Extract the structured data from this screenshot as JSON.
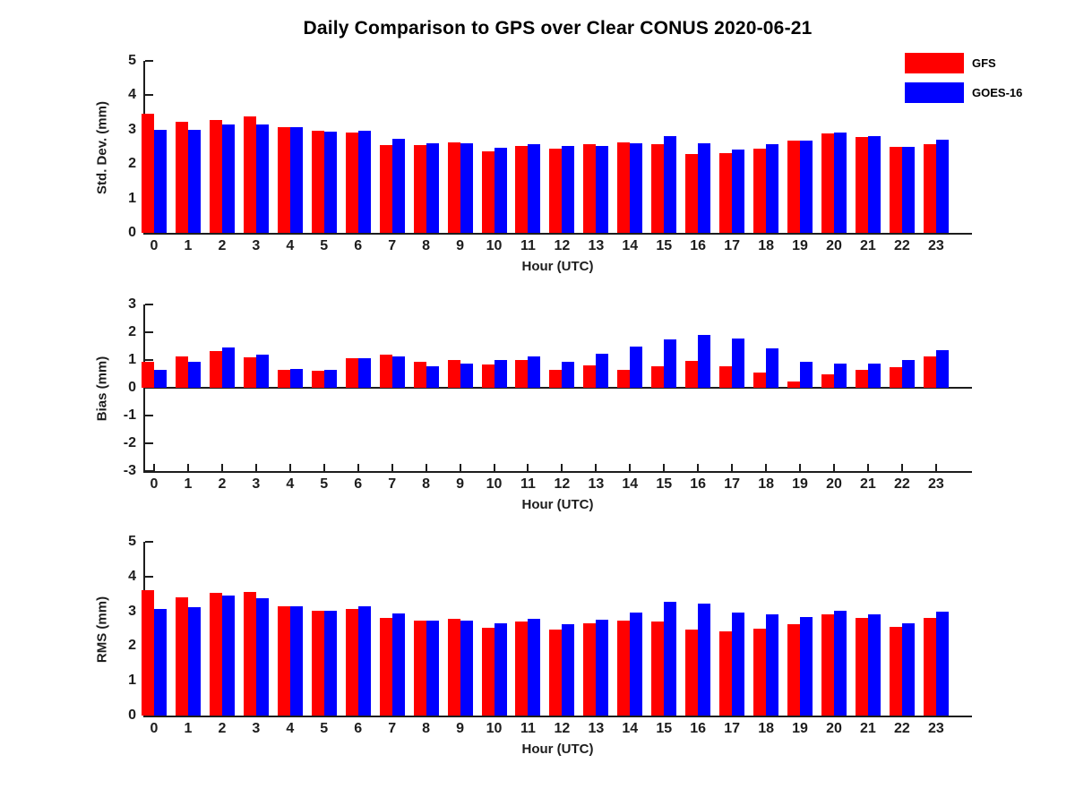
{
  "title": "Daily Comparison to GPS over Clear CONUS 2020-06-21",
  "colors": {
    "gfs_red": "#ff0000",
    "goes_blue": "#0000ff",
    "axis": "#1d1d1d"
  },
  "legend": {
    "position": "top-right",
    "items": [
      {
        "label": "GFS",
        "color": "#ff0000"
      },
      {
        "label": "GOES-16",
        "color": "#0000ff"
      }
    ]
  },
  "chart_data": [
    {
      "type": "bar",
      "name": "std-dev-panel",
      "ylabel": "Std. Dev. (mm)",
      "xlabel": "Hour (UTC)",
      "ylim": [
        0,
        5
      ],
      "yticks": [
        0,
        1,
        2,
        3,
        4,
        5
      ],
      "xticks_visible": false,
      "grid": false,
      "categories": [
        "0",
        "1",
        "2",
        "3",
        "4",
        "5",
        "6",
        "7",
        "8",
        "9",
        "10",
        "11",
        "12",
        "13",
        "14",
        "15",
        "16",
        "17",
        "18",
        "19",
        "20",
        "21",
        "22",
        "23"
      ],
      "series": [
        {
          "name": "GFS",
          "color": "#ff0000",
          "values": [
            3.47,
            3.23,
            3.27,
            3.38,
            3.08,
            2.96,
            2.91,
            2.56,
            2.56,
            2.63,
            2.36,
            2.52,
            2.44,
            2.57,
            2.64,
            2.58,
            2.3,
            2.33,
            2.46,
            2.67,
            2.88,
            2.78,
            2.49,
            2.57
          ]
        },
        {
          "name": "GOES-16",
          "color": "#0000ff",
          "values": [
            3.0,
            3.0,
            3.16,
            3.16,
            3.08,
            2.95,
            2.98,
            2.74,
            2.61,
            2.61,
            2.48,
            2.58,
            2.52,
            2.52,
            2.6,
            2.81,
            2.61,
            2.43,
            2.58,
            2.69,
            2.93,
            2.8,
            2.49,
            2.7
          ]
        }
      ]
    },
    {
      "type": "bar",
      "name": "bias-panel",
      "ylabel": "Bias (mm)",
      "xlabel": "Hour (UTC)",
      "ylim": [
        -3,
        3
      ],
      "yticks": [
        -3,
        -2,
        -1,
        0,
        1,
        2,
        3
      ],
      "xticks_visible": true,
      "grid": false,
      "categories": [
        "0",
        "1",
        "2",
        "3",
        "4",
        "5",
        "6",
        "7",
        "8",
        "9",
        "10",
        "11",
        "12",
        "13",
        "14",
        "15",
        "16",
        "17",
        "18",
        "19",
        "20",
        "21",
        "22",
        "23"
      ],
      "series": [
        {
          "name": "GFS",
          "color": "#ff0000",
          "values": [
            0.95,
            1.12,
            1.31,
            1.09,
            0.63,
            0.6,
            1.05,
            1.2,
            0.94,
            0.99,
            0.85,
            0.99,
            0.66,
            0.8,
            0.64,
            0.77,
            0.97,
            0.77,
            0.55,
            0.22,
            0.48,
            0.63,
            0.73,
            1.12
          ]
        },
        {
          "name": "GOES-16",
          "color": "#0000ff",
          "values": [
            0.66,
            0.94,
            1.46,
            1.21,
            0.68,
            0.66,
            1.07,
            1.12,
            0.78,
            0.86,
            0.99,
            1.13,
            0.95,
            1.22,
            1.47,
            1.73,
            1.9,
            1.77,
            1.41,
            0.95,
            0.88,
            0.88,
            1.0,
            1.37
          ]
        }
      ]
    },
    {
      "type": "bar",
      "name": "rms-panel",
      "ylabel": "RMS (mm)",
      "xlabel": "Hour (UTC)",
      "ylim": [
        0,
        5
      ],
      "yticks": [
        0,
        1,
        2,
        3,
        4,
        5
      ],
      "xticks_visible": false,
      "grid": false,
      "categories": [
        "0",
        "1",
        "2",
        "3",
        "4",
        "5",
        "6",
        "7",
        "8",
        "9",
        "10",
        "11",
        "12",
        "13",
        "14",
        "15",
        "16",
        "17",
        "18",
        "19",
        "20",
        "21",
        "22",
        "23"
      ],
      "series": [
        {
          "name": "GFS",
          "color": "#ff0000",
          "values": [
            3.6,
            3.4,
            3.52,
            3.55,
            3.14,
            3.01,
            3.08,
            2.82,
            2.72,
            2.79,
            2.52,
            2.7,
            2.48,
            2.66,
            2.72,
            2.7,
            2.48,
            2.43,
            2.51,
            2.62,
            2.9,
            2.81,
            2.56,
            2.81
          ]
        },
        {
          "name": "GOES-16",
          "color": "#0000ff",
          "values": [
            3.06,
            3.11,
            3.46,
            3.37,
            3.14,
            3.01,
            3.15,
            2.94,
            2.72,
            2.74,
            2.66,
            2.79,
            2.62,
            2.77,
            2.97,
            3.28,
            3.21,
            2.97,
            2.92,
            2.83,
            3.01,
            2.92,
            2.66,
            3.0
          ]
        }
      ]
    }
  ]
}
